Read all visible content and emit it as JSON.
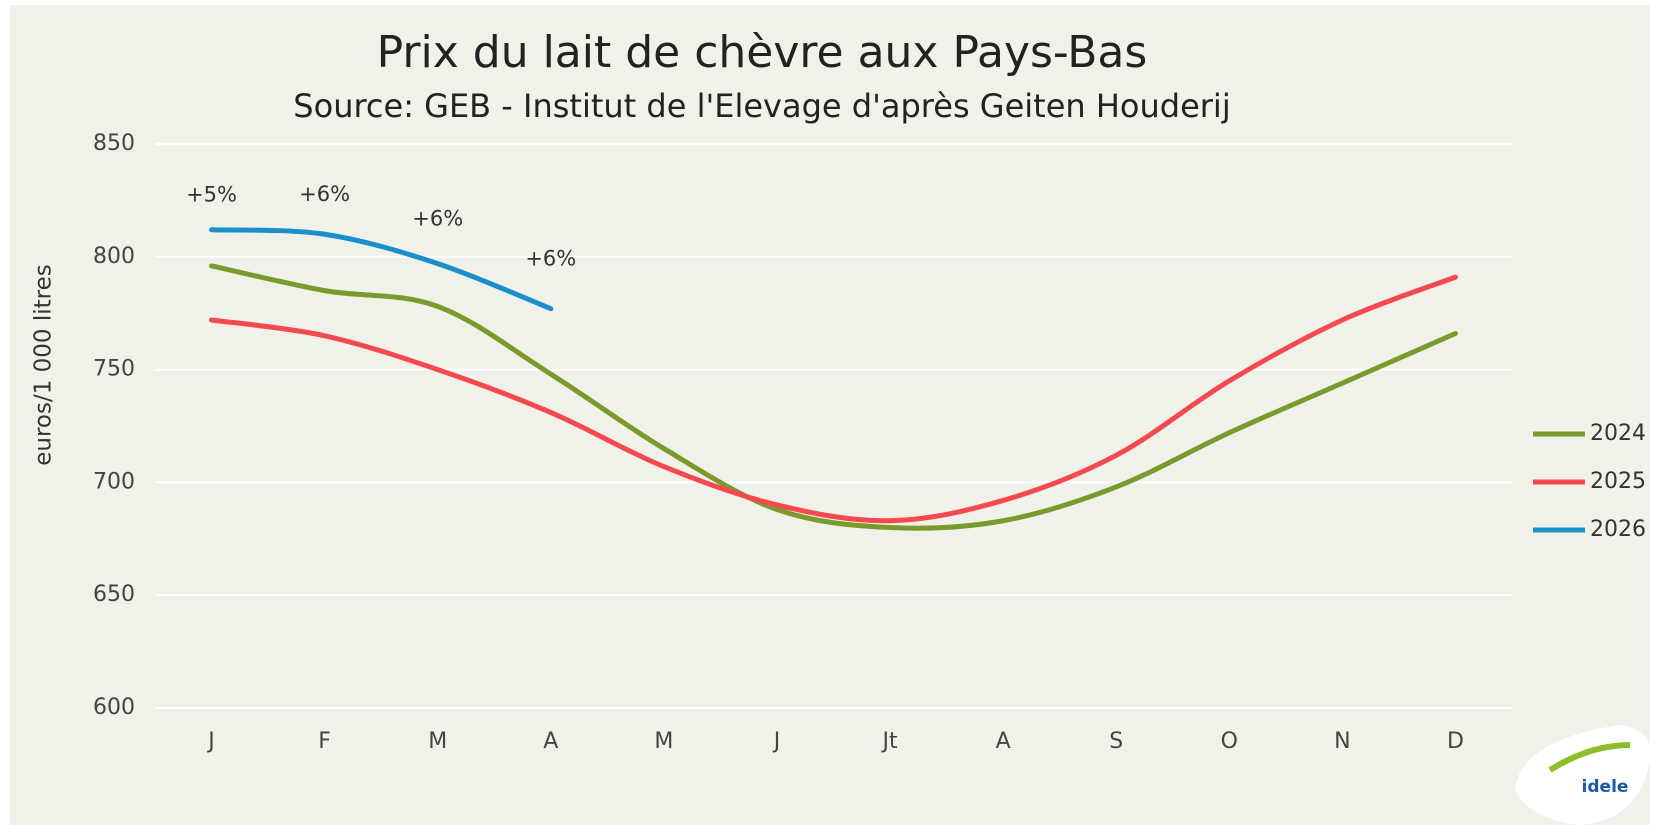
{
  "chart_data": {
    "type": "line",
    "title": "Prix du lait de chèvre aux Pays-Bas",
    "subtitle": "Source: GEB - Institut de l'Elevage d'après Geiten Houderij",
    "y_label": "euros/1 000 litres",
    "categories": [
      "J",
      "F",
      "M",
      "A",
      "M",
      "J",
      "Jt",
      "A",
      "S",
      "O",
      "N",
      "D"
    ],
    "series": [
      {
        "name": "2024",
        "color": "#7a9a2c",
        "values": [
          796,
          785,
          778,
          748,
          715,
          688,
          680,
          683,
          698,
          722,
          744,
          766
        ]
      },
      {
        "name": "2025",
        "color": "#f5484f",
        "values": [
          772,
          765,
          750,
          731,
          707,
          690,
          683,
          692,
          712,
          745,
          772,
          791
        ]
      },
      {
        "name": "2026",
        "color": "#1a8fc9",
        "values": [
          812,
          810,
          797,
          777,
          null,
          null,
          null,
          null,
          null,
          null,
          null,
          null
        ]
      }
    ],
    "annotations": [
      "+5%",
      "+6%",
      "+6%",
      "+6%"
    ],
    "ylim": [
      600,
      850
    ],
    "yticks": [
      600,
      650,
      700,
      750,
      800,
      850
    ],
    "grid": true,
    "legend": "right",
    "logo_text": "idele"
  }
}
